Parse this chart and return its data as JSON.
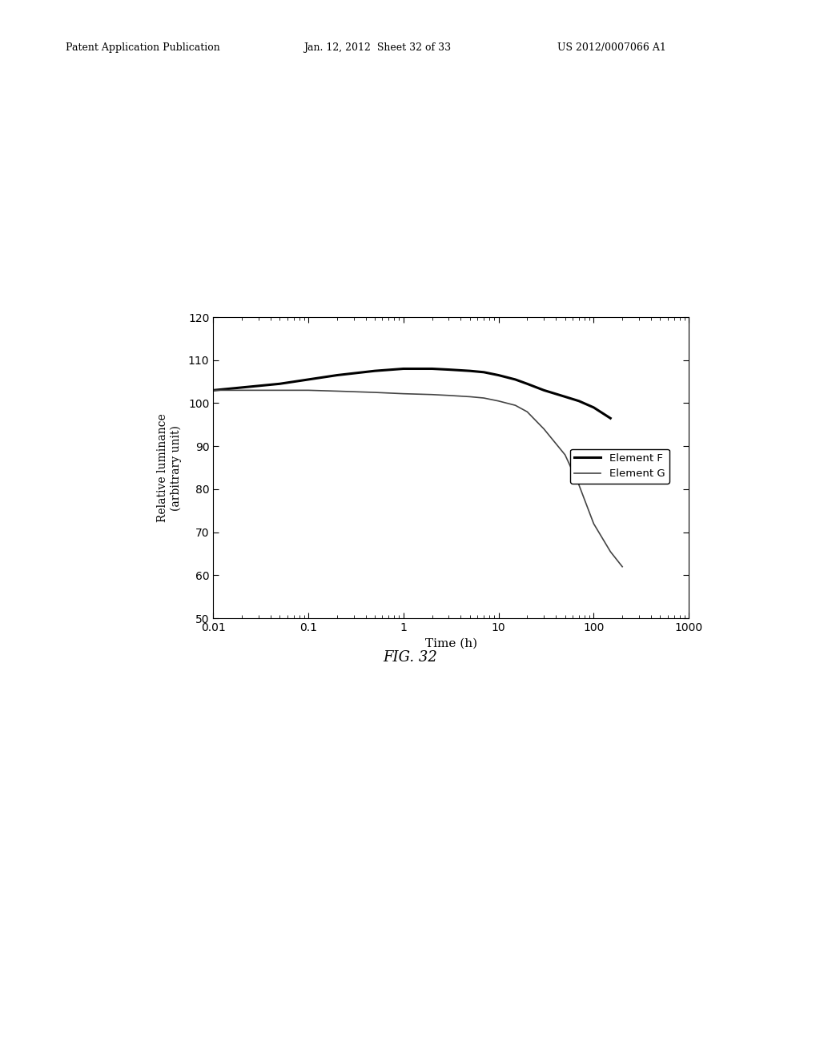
{
  "header_left": "Patent Application Publication",
  "header_mid": "Jan. 12, 2012  Sheet 32 of 33",
  "header_right": "US 2012/0007066 A1",
  "fig_label": "FIG. 32",
  "xlabel": "Time (h)",
  "ylabel": "Relative luminance\n(arbitrary unit)",
  "ylim": [
    50,
    120
  ],
  "xlim": [
    0.01,
    1000
  ],
  "yticks": [
    50,
    60,
    70,
    80,
    90,
    100,
    110,
    120
  ],
  "legend": [
    "Element F",
    "Element G"
  ],
  "element_F_color": "#000000",
  "element_G_color": "#444444",
  "element_F_linewidth": 2.2,
  "element_G_linewidth": 1.2,
  "background_color": "#ffffff",
  "element_F_x": [
    0.01,
    0.05,
    0.1,
    0.2,
    0.5,
    1.0,
    2.0,
    3.0,
    5.0,
    7.0,
    10.0,
    15.0,
    20.0,
    30.0,
    50.0,
    70.0,
    100.0,
    150.0
  ],
  "element_F_y": [
    103.0,
    104.5,
    105.5,
    106.5,
    107.5,
    108.0,
    108.0,
    107.8,
    107.5,
    107.2,
    106.5,
    105.5,
    104.5,
    103.0,
    101.5,
    100.5,
    99.0,
    96.5
  ],
  "element_G_x": [
    0.01,
    0.05,
    0.1,
    0.2,
    0.5,
    1.0,
    2.0,
    3.0,
    5.0,
    7.0,
    10.0,
    15.0,
    20.0,
    30.0,
    50.0,
    70.0,
    100.0,
    150.0,
    200.0
  ],
  "element_G_y": [
    103.0,
    103.0,
    103.0,
    102.8,
    102.5,
    102.2,
    102.0,
    101.8,
    101.5,
    101.2,
    100.5,
    99.5,
    98.0,
    94.0,
    88.0,
    81.0,
    72.0,
    65.5,
    62.0
  ]
}
